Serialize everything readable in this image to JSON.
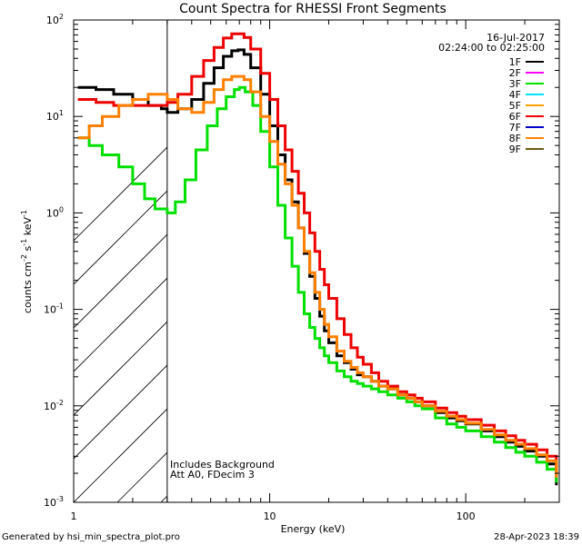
{
  "chart_data": {
    "type": "line",
    "title": "Count Spectra for RHESSI Front Segments",
    "xlabel": "Energy (keV)",
    "ylabel_parts": [
      "counts cm",
      "-2",
      " s",
      "-1",
      " keV",
      "-1"
    ],
    "xscale": "log",
    "yscale": "log",
    "xlim": [
      1,
      300
    ],
    "ylim": [
      0.001,
      100
    ],
    "x_ticks": [
      {
        "value": 1,
        "label": "1"
      },
      {
        "value": 10,
        "label": "10"
      },
      {
        "value": 100,
        "label": "100"
      }
    ],
    "y_ticks": [
      {
        "exp": -3,
        "label_base": "10",
        "label_exp": "-3"
      },
      {
        "exp": -2,
        "label_base": "10",
        "label_exp": "-2"
      },
      {
        "exp": -1,
        "label_base": "10",
        "label_exp": "-1"
      },
      {
        "exp": 0,
        "label_base": "10",
        "label_exp": "0"
      },
      {
        "exp": 1,
        "label_base": "10",
        "label_exp": "1"
      },
      {
        "exp": 2,
        "label_base": "10",
        "label_exp": "2"
      }
    ],
    "hatched_region": {
      "x_from": 1,
      "x_to": 3
    },
    "date": "16-Jul-2017",
    "time_range": "02:24:00 to 02:25:00",
    "annotations": [
      "Includes Background",
      "Att A0, FDecim 3"
    ],
    "legend": [
      {
        "name": "1F",
        "color": "#000000"
      },
      {
        "name": "2F",
        "color": "#ff00ff"
      },
      {
        "name": "3F",
        "color": "#00e000"
      },
      {
        "name": "4F",
        "color": "#00e0ff"
      },
      {
        "name": "5F",
        "color": "#ffa000"
      },
      {
        "name": "6F",
        "color": "#ee0000"
      },
      {
        "name": "7F",
        "color": "#0000cc"
      },
      {
        "name": "8F",
        "color": "#ff8000"
      },
      {
        "name": "9F",
        "color": "#6b5a10"
      }
    ],
    "series": [
      {
        "name": "1F",
        "color": "#000000",
        "points": [
          [
            1.05,
            20
          ],
          [
            1.3,
            19
          ],
          [
            1.6,
            17
          ],
          [
            2.0,
            15
          ],
          [
            2.4,
            13
          ],
          [
            2.8,
            12
          ],
          [
            3.0,
            11
          ],
          [
            3.4,
            12
          ],
          [
            4.0,
            15
          ],
          [
            4.6,
            22
          ],
          [
            5.2,
            32
          ],
          [
            5.8,
            42
          ],
          [
            6.4,
            48
          ],
          [
            6.9,
            49
          ],
          [
            7.4,
            44
          ],
          [
            8.0,
            32
          ],
          [
            9.0,
            17
          ],
          [
            10,
            8
          ],
          [
            11,
            4
          ],
          [
            12,
            2.2
          ],
          [
            13,
            1.3
          ],
          [
            14,
            0.7
          ],
          [
            15,
            0.38
          ],
          [
            16,
            0.22
          ],
          [
            17,
            0.13
          ],
          [
            18,
            0.085
          ],
          [
            19,
            0.06
          ],
          [
            20,
            0.045
          ],
          [
            22,
            0.033
          ],
          [
            24,
            0.028
          ],
          [
            26,
            0.024
          ],
          [
            28,
            0.021
          ],
          [
            30,
            0.02
          ],
          [
            33,
            0.018
          ],
          [
            36,
            0.016
          ],
          [
            40,
            0.015
          ],
          [
            45,
            0.013
          ],
          [
            50,
            0.012
          ],
          [
            55,
            0.011
          ],
          [
            60,
            0.01
          ],
          [
            70,
            0.0085
          ],
          [
            80,
            0.0075
          ],
          [
            90,
            0.007
          ],
          [
            100,
            0.0065
          ],
          [
            120,
            0.0055
          ],
          [
            140,
            0.0048
          ],
          [
            160,
            0.0042
          ],
          [
            180,
            0.0038
          ],
          [
            200,
            0.0034
          ],
          [
            230,
            0.003
          ],
          [
            260,
            0.0025
          ],
          [
            290,
            0.0015
          ]
        ]
      },
      {
        "name": "3F",
        "color": "#00e000",
        "points": [
          [
            1.05,
            6
          ],
          [
            1.2,
            5
          ],
          [
            1.4,
            4
          ],
          [
            1.7,
            3
          ],
          [
            2.0,
            2
          ],
          [
            2.3,
            1.4
          ],
          [
            2.6,
            1.1
          ],
          [
            3.0,
            1.0
          ],
          [
            3.3,
            1.3
          ],
          [
            3.7,
            2.2
          ],
          [
            4.2,
            4.5
          ],
          [
            4.8,
            8
          ],
          [
            5.4,
            12
          ],
          [
            6.0,
            16
          ],
          [
            6.6,
            19
          ],
          [
            7.0,
            20
          ],
          [
            7.5,
            18
          ],
          [
            8.2,
            13
          ],
          [
            9.0,
            7
          ],
          [
            10,
            3
          ],
          [
            11,
            1.2
          ],
          [
            12,
            0.55
          ],
          [
            13,
            0.28
          ],
          [
            14,
            0.15
          ],
          [
            15,
            0.09
          ],
          [
            16,
            0.065
          ],
          [
            17,
            0.05
          ],
          [
            18,
            0.04
          ],
          [
            19,
            0.033
          ],
          [
            20,
            0.028
          ],
          [
            22,
            0.023
          ],
          [
            24,
            0.02
          ],
          [
            26,
            0.018
          ],
          [
            28,
            0.017
          ],
          [
            30,
            0.016
          ],
          [
            33,
            0.015
          ],
          [
            36,
            0.014
          ],
          [
            40,
            0.013
          ],
          [
            45,
            0.012
          ],
          [
            50,
            0.011
          ],
          [
            55,
            0.01
          ],
          [
            60,
            0.0093
          ],
          [
            70,
            0.0075
          ],
          [
            80,
            0.0065
          ],
          [
            90,
            0.006
          ],
          [
            100,
            0.0055
          ],
          [
            120,
            0.0048
          ],
          [
            140,
            0.0042
          ],
          [
            160,
            0.0037
          ],
          [
            180,
            0.0033
          ],
          [
            200,
            0.003
          ],
          [
            230,
            0.0026
          ],
          [
            260,
            0.0022
          ],
          [
            290,
            0.0016
          ]
        ]
      },
      {
        "name": "6F",
        "color": "#ee0000",
        "points": [
          [
            1.05,
            15
          ],
          [
            1.3,
            14
          ],
          [
            1.6,
            13
          ],
          [
            2.0,
            13
          ],
          [
            2.4,
            13
          ],
          [
            2.8,
            13
          ],
          [
            3.0,
            14
          ],
          [
            3.4,
            17
          ],
          [
            4.0,
            26
          ],
          [
            4.6,
            38
          ],
          [
            5.2,
            52
          ],
          [
            5.8,
            65
          ],
          [
            6.4,
            72
          ],
          [
            6.9,
            72
          ],
          [
            7.4,
            66
          ],
          [
            8.0,
            50
          ],
          [
            9.0,
            28
          ],
          [
            10,
            15
          ],
          [
            11,
            8
          ],
          [
            12,
            4.5
          ],
          [
            13,
            2.7
          ],
          [
            14,
            1.6
          ],
          [
            15,
            1.0
          ],
          [
            16,
            0.62
          ],
          [
            17,
            0.4
          ],
          [
            18,
            0.26
          ],
          [
            19,
            0.18
          ],
          [
            20,
            0.13
          ],
          [
            22,
            0.08
          ],
          [
            24,
            0.055
          ],
          [
            26,
            0.04
          ],
          [
            28,
            0.032
          ],
          [
            30,
            0.027
          ],
          [
            33,
            0.022
          ],
          [
            36,
            0.018
          ],
          [
            40,
            0.016
          ],
          [
            45,
            0.014
          ],
          [
            50,
            0.013
          ],
          [
            55,
            0.012
          ],
          [
            60,
            0.011
          ],
          [
            70,
            0.0095
          ],
          [
            80,
            0.0085
          ],
          [
            90,
            0.0078
          ],
          [
            100,
            0.0072
          ],
          [
            120,
            0.0063
          ],
          [
            140,
            0.0055
          ],
          [
            160,
            0.0049
          ],
          [
            180,
            0.0044
          ],
          [
            200,
            0.004
          ],
          [
            230,
            0.0035
          ],
          [
            260,
            0.003
          ],
          [
            290,
            0.002
          ]
        ]
      },
      {
        "name": "8F",
        "color": "#ff8000",
        "points": [
          [
            1.05,
            6
          ],
          [
            1.2,
            8
          ],
          [
            1.4,
            10
          ],
          [
            1.7,
            13
          ],
          [
            2.0,
            15
          ],
          [
            2.4,
            17
          ],
          [
            2.8,
            17
          ],
          [
            3.0,
            15
          ],
          [
            3.4,
            12
          ],
          [
            4.0,
            11
          ],
          [
            4.6,
            14
          ],
          [
            5.2,
            19
          ],
          [
            5.8,
            24
          ],
          [
            6.4,
            26
          ],
          [
            6.9,
            26
          ],
          [
            7.4,
            24
          ],
          [
            8.0,
            18
          ],
          [
            9.0,
            10
          ],
          [
            10,
            5.5
          ],
          [
            11,
            3.2
          ],
          [
            12,
            2
          ],
          [
            13,
            1.2
          ],
          [
            14,
            0.7
          ],
          [
            15,
            0.4
          ],
          [
            16,
            0.24
          ],
          [
            17,
            0.15
          ],
          [
            18,
            0.1
          ],
          [
            19,
            0.07
          ],
          [
            20,
            0.052
          ],
          [
            22,
            0.037
          ],
          [
            24,
            0.029
          ],
          [
            26,
            0.025
          ],
          [
            28,
            0.022
          ],
          [
            30,
            0.02
          ],
          [
            33,
            0.018
          ],
          [
            36,
            0.016
          ],
          [
            40,
            0.015
          ],
          [
            45,
            0.013
          ],
          [
            50,
            0.012
          ],
          [
            55,
            0.011
          ],
          [
            60,
            0.01
          ],
          [
            70,
            0.0088
          ],
          [
            80,
            0.0078
          ],
          [
            90,
            0.0072
          ],
          [
            100,
            0.0066
          ],
          [
            120,
            0.0057
          ],
          [
            140,
            0.005
          ],
          [
            160,
            0.0044
          ],
          [
            180,
            0.004
          ],
          [
            200,
            0.0036
          ],
          [
            230,
            0.0031
          ],
          [
            260,
            0.0027
          ],
          [
            290,
            0.0018
          ]
        ]
      }
    ]
  },
  "footer": {
    "generated_by": "Generated by hsi_min_spectra_plot.pro",
    "timestamp": "28-Apr-2023 18:39"
  }
}
